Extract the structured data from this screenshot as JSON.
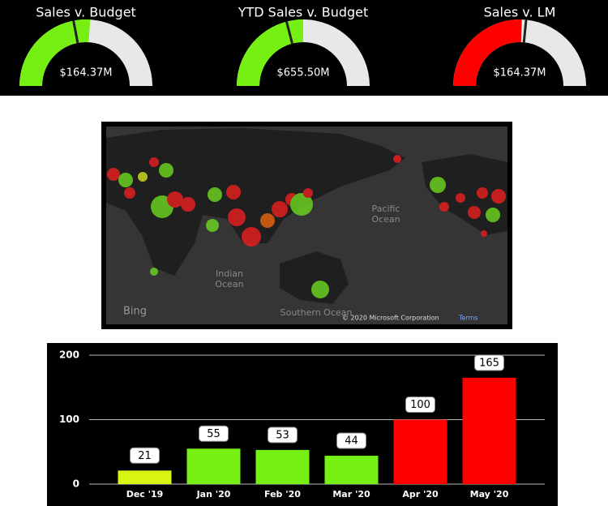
{
  "chart_data": [
    {
      "type": "gauge",
      "title": "Sales v. Budget",
      "values": [
        164.37
      ],
      "value_labels": [
        "$164.37M"
      ],
      "range": [
        0,
        316
      ],
      "target": 139,
      "color": "#76f013"
    },
    {
      "type": "gauge",
      "title": "YTD Sales v. Budget",
      "values": [
        655.5
      ],
      "value_labels": [
        "$655.50M"
      ],
      "range": [
        0,
        1311
      ],
      "target": 550,
      "color": "#76f013"
    },
    {
      "type": "gauge",
      "title": "Sales v. LM",
      "values": [
        164.37
      ],
      "value_labels": [
        "$164.37M"
      ],
      "range": [
        0,
        322
      ],
      "target": 171,
      "color": "#ff0000"
    },
    {
      "type": "bar",
      "categories": [
        "Dec '19",
        "Jan '20",
        "Feb '20",
        "Mar '20",
        "Apr '20",
        "May '20"
      ],
      "values": [
        21,
        55,
        53,
        44,
        100,
        165
      ],
      "colors": [
        "#d9f514",
        "#76f013",
        "#76f013",
        "#76f013",
        "#ff0000",
        "#ff0000"
      ],
      "ylim": [
        0,
        200
      ],
      "yticks": [
        0,
        100,
        200
      ],
      "grid": true
    }
  ],
  "map": {
    "pacific": [
      "Pacific",
      "Ocean"
    ],
    "indian": [
      "Indian",
      "Ocean"
    ],
    "southern": "Southern Ocean",
    "logo": "Bing",
    "copyright": "© 2020 Microsoft Corporation",
    "terms": "Terms"
  }
}
